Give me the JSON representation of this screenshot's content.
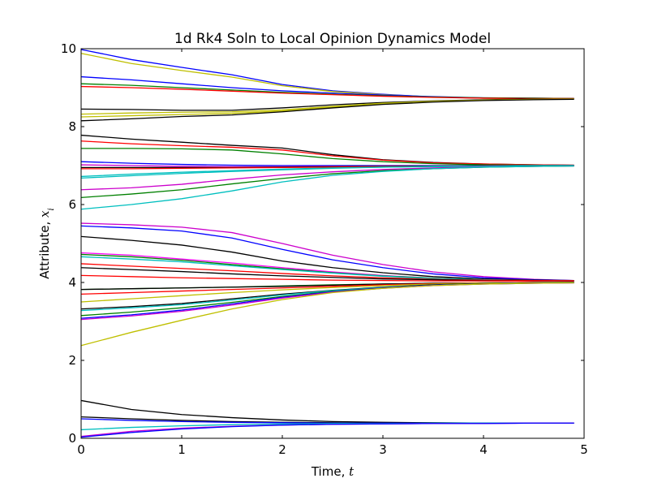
{
  "chart_data": {
    "type": "line",
    "title": "1d Rk4 Soln to Local Opinion Dynamics Model",
    "xlabel_text": "Time, ",
    "xlabel_var": "t",
    "ylabel_text": "Attribute, ",
    "ylabel_var": "x",
    "ylabel_sub": "i",
    "xlim": [
      0,
      5
    ],
    "ylim": [
      0,
      10
    ],
    "xticks": [
      "0",
      "1",
      "2",
      "3",
      "4",
      "5"
    ],
    "yticks": [
      "0",
      "2",
      "4",
      "6",
      "8",
      "10"
    ],
    "grid": false,
    "legend": "none",
    "x": [
      0,
      0.5,
      1.0,
      1.5,
      2.0,
      2.5,
      3.0,
      3.5,
      4.0,
      4.5,
      4.9
    ],
    "series": [
      {
        "color": "#0000ff",
        "values": [
          9.98,
          9.72,
          9.52,
          9.33,
          9.08,
          8.92,
          8.83,
          8.76,
          8.73,
          8.72,
          8.72
        ]
      },
      {
        "color": "#bfbf00",
        "values": [
          9.88,
          9.62,
          9.44,
          9.27,
          9.05,
          8.9,
          8.82,
          8.76,
          8.73,
          8.72,
          8.72
        ]
      },
      {
        "color": "#0000ff",
        "values": [
          9.28,
          9.2,
          9.1,
          9.0,
          8.92,
          8.86,
          8.81,
          8.77,
          8.74,
          8.73,
          8.72
        ]
      },
      {
        "color": "#008000",
        "values": [
          9.1,
          9.06,
          9.0,
          8.94,
          8.88,
          8.83,
          8.79,
          8.76,
          8.74,
          8.73,
          8.72
        ]
      },
      {
        "color": "#ff0000",
        "values": [
          9.03,
          9.0,
          8.96,
          8.91,
          8.86,
          8.82,
          8.78,
          8.75,
          8.73,
          8.72,
          8.72
        ]
      },
      {
        "color": "#000000",
        "values": [
          8.45,
          8.44,
          8.42,
          8.42,
          8.48,
          8.56,
          8.62,
          8.66,
          8.69,
          8.71,
          8.71
        ]
      },
      {
        "color": "#bfbf00",
        "values": [
          8.32,
          8.35,
          8.37,
          8.38,
          8.43,
          8.52,
          8.6,
          8.65,
          8.68,
          8.7,
          8.71
        ]
      },
      {
        "color": "#bfbf00",
        "values": [
          8.25,
          8.28,
          8.31,
          8.34,
          8.4,
          8.5,
          8.58,
          8.64,
          8.68,
          8.7,
          8.7
        ]
      },
      {
        "color": "#000000",
        "values": [
          8.15,
          8.2,
          8.26,
          8.3,
          8.38,
          8.48,
          8.57,
          8.63,
          8.67,
          8.69,
          8.7
        ]
      },
      {
        "color": "#000000",
        "values": [
          7.78,
          7.68,
          7.6,
          7.52,
          7.45,
          7.28,
          7.15,
          7.08,
          7.04,
          7.02,
          7.01
        ]
      },
      {
        "color": "#ff0000",
        "values": [
          7.63,
          7.56,
          7.51,
          7.47,
          7.4,
          7.25,
          7.14,
          7.07,
          7.04,
          7.02,
          7.01
        ]
      },
      {
        "color": "#008000",
        "values": [
          7.44,
          7.44,
          7.43,
          7.4,
          7.3,
          7.18,
          7.1,
          7.05,
          7.02,
          7.01,
          7.0
        ]
      },
      {
        "color": "#0000ff",
        "values": [
          7.1,
          7.06,
          7.03,
          7.01,
          7.0,
          7.0,
          7.0,
          7.0,
          7.0,
          7.0,
          7.0
        ]
      },
      {
        "color": "#cc00cc",
        "values": [
          7.02,
          7.0,
          6.98,
          6.97,
          6.97,
          6.98,
          6.99,
          6.99,
          7.0,
          7.0,
          7.0
        ]
      },
      {
        "color": "#000000",
        "values": [
          6.95,
          6.95,
          6.95,
          6.95,
          6.96,
          6.97,
          6.98,
          6.99,
          7.0,
          7.0,
          7.0
        ]
      },
      {
        "color": "#ff0000",
        "values": [
          6.92,
          6.92,
          6.93,
          6.94,
          6.95,
          6.96,
          6.97,
          6.98,
          6.99,
          7.0,
          7.0
        ]
      },
      {
        "color": "#00bfbf",
        "values": [
          6.72,
          6.78,
          6.83,
          6.87,
          6.91,
          6.94,
          6.96,
          6.98,
          6.99,
          7.0,
          7.0
        ]
      },
      {
        "color": "#00bfbf",
        "values": [
          6.68,
          6.74,
          6.8,
          6.85,
          6.89,
          6.93,
          6.96,
          6.97,
          6.98,
          6.99,
          7.0
        ]
      },
      {
        "color": "#cc00cc",
        "values": [
          6.38,
          6.43,
          6.52,
          6.65,
          6.76,
          6.84,
          6.9,
          6.94,
          6.97,
          6.98,
          6.99
        ]
      },
      {
        "color": "#008000",
        "values": [
          6.18,
          6.27,
          6.38,
          6.53,
          6.67,
          6.79,
          6.87,
          6.92,
          6.96,
          6.98,
          6.99
        ]
      },
      {
        "color": "#00bfbf",
        "values": [
          5.88,
          6.0,
          6.15,
          6.35,
          6.58,
          6.75,
          6.85,
          6.92,
          6.96,
          6.98,
          6.99
        ]
      },
      {
        "color": "#cc00cc",
        "values": [
          5.52,
          5.48,
          5.42,
          5.28,
          5.0,
          4.7,
          4.46,
          4.27,
          4.15,
          4.08,
          4.05
        ]
      },
      {
        "color": "#0000ff",
        "values": [
          5.45,
          5.4,
          5.32,
          5.14,
          4.85,
          4.58,
          4.38,
          4.22,
          4.12,
          4.07,
          4.05
        ]
      },
      {
        "color": "#000000",
        "values": [
          5.18,
          5.08,
          4.96,
          4.78,
          4.55,
          4.38,
          4.25,
          4.15,
          4.09,
          4.06,
          4.05
        ]
      },
      {
        "color": "#ff00ff",
        "values": [
          4.76,
          4.7,
          4.6,
          4.5,
          4.38,
          4.27,
          4.18,
          4.11,
          4.07,
          4.05,
          4.04
        ]
      },
      {
        "color": "#008000",
        "values": [
          4.72,
          4.66,
          4.57,
          4.46,
          4.35,
          4.25,
          4.17,
          4.11,
          4.07,
          4.05,
          4.04
        ]
      },
      {
        "color": "#00bfbf",
        "values": [
          4.66,
          4.6,
          4.53,
          4.43,
          4.33,
          4.24,
          4.16,
          4.1,
          4.07,
          4.05,
          4.04
        ]
      },
      {
        "color": "#ff0000",
        "values": [
          4.48,
          4.42,
          4.36,
          4.3,
          4.23,
          4.17,
          4.12,
          4.08,
          4.06,
          4.05,
          4.04
        ]
      },
      {
        "color": "#000000",
        "values": [
          4.38,
          4.33,
          4.28,
          4.22,
          4.17,
          4.13,
          4.09,
          4.07,
          4.05,
          4.04,
          4.04
        ]
      },
      {
        "color": "#ff0000",
        "values": [
          4.18,
          4.15,
          4.12,
          4.1,
          4.08,
          4.06,
          4.05,
          4.04,
          4.04,
          4.04,
          4.04
        ]
      },
      {
        "color": "#008000",
        "values": [
          3.82,
          3.84,
          3.86,
          3.88,
          3.91,
          3.94,
          3.96,
          3.98,
          3.99,
          4.0,
          4.0
        ]
      },
      {
        "color": "#000000",
        "values": [
          3.82,
          3.84,
          3.86,
          3.88,
          3.9,
          3.93,
          3.96,
          3.98,
          3.99,
          4.0,
          4.0
        ]
      },
      {
        "color": "#ff0000",
        "values": [
          3.7,
          3.74,
          3.78,
          3.82,
          3.86,
          3.9,
          3.94,
          3.97,
          3.99,
          4.0,
          4.0
        ]
      },
      {
        "color": "#bfbf00",
        "values": [
          3.5,
          3.58,
          3.66,
          3.74,
          3.81,
          3.87,
          3.92,
          3.96,
          3.98,
          3.99,
          4.0
        ]
      },
      {
        "color": "#000000",
        "values": [
          3.32,
          3.38,
          3.46,
          3.58,
          3.7,
          3.8,
          3.88,
          3.94,
          3.97,
          3.99,
          4.0
        ]
      },
      {
        "color": "#00bfbf",
        "values": [
          3.28,
          3.35,
          3.43,
          3.55,
          3.68,
          3.79,
          3.87,
          3.93,
          3.97,
          3.99,
          4.0
        ]
      },
      {
        "color": "#008000",
        "values": [
          3.15,
          3.24,
          3.35,
          3.49,
          3.64,
          3.77,
          3.86,
          3.93,
          3.97,
          3.99,
          4.0
        ]
      },
      {
        "color": "#0000ff",
        "values": [
          3.08,
          3.17,
          3.29,
          3.45,
          3.62,
          3.76,
          3.86,
          3.93,
          3.96,
          3.98,
          3.99
        ]
      },
      {
        "color": "#cc00cc",
        "values": [
          3.05,
          3.14,
          3.26,
          3.42,
          3.6,
          3.75,
          3.85,
          3.92,
          3.96,
          3.98,
          3.99
        ]
      },
      {
        "color": "#bfbf00",
        "values": [
          2.38,
          2.72,
          3.03,
          3.32,
          3.56,
          3.74,
          3.85,
          3.92,
          3.96,
          3.98,
          3.99
        ]
      },
      {
        "color": "#000000",
        "values": [
          0.97,
          0.74,
          0.61,
          0.53,
          0.47,
          0.43,
          0.41,
          0.4,
          0.39,
          0.39,
          0.39
        ]
      },
      {
        "color": "#000000",
        "values": [
          0.55,
          0.5,
          0.46,
          0.43,
          0.41,
          0.4,
          0.39,
          0.39,
          0.39,
          0.39,
          0.39
        ]
      },
      {
        "color": "#0000ff",
        "values": [
          0.5,
          0.46,
          0.43,
          0.41,
          0.4,
          0.39,
          0.39,
          0.39,
          0.39,
          0.39,
          0.39
        ]
      },
      {
        "color": "#00bfbf",
        "values": [
          0.22,
          0.28,
          0.32,
          0.35,
          0.37,
          0.38,
          0.38,
          0.39,
          0.39,
          0.39,
          0.39
        ]
      },
      {
        "color": "#cc00cc",
        "values": [
          0.05,
          0.18,
          0.26,
          0.31,
          0.34,
          0.36,
          0.37,
          0.38,
          0.38,
          0.39,
          0.39
        ]
      },
      {
        "color": "#0000ff",
        "values": [
          0.03,
          0.15,
          0.24,
          0.3,
          0.34,
          0.36,
          0.37,
          0.38,
          0.38,
          0.39,
          0.39
        ]
      }
    ]
  }
}
